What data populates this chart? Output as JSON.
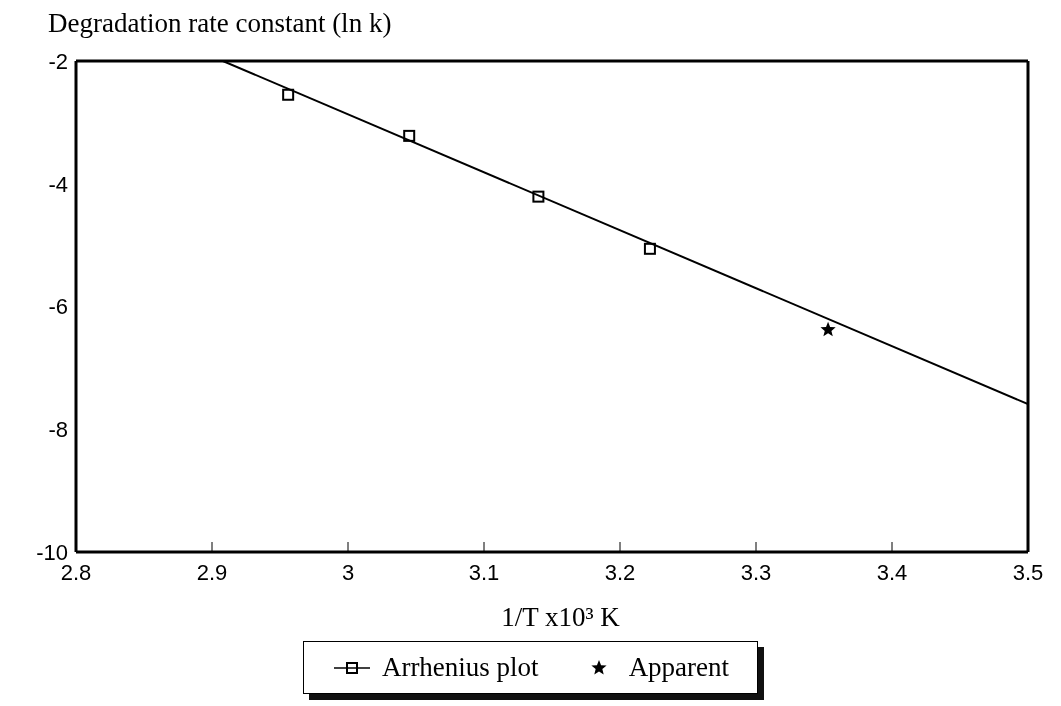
{
  "chart_data": {
    "type": "scatter",
    "ylabel": "Degradation rate constant (ln k)",
    "xlabel": "1/T  x10³ K",
    "xlim": [
      2.8,
      3.5
    ],
    "xticks": [
      2.8,
      2.9,
      3,
      3.1,
      3.2,
      3.3,
      3.4,
      3.5
    ],
    "ylim": [
      -10,
      -2
    ],
    "yticks": [
      -10,
      -8,
      -6,
      -4,
      -2
    ],
    "grid": false,
    "legend": "bottom",
    "series": [
      {
        "name": "Arrhenius plot",
        "marker": "square",
        "color": "#000000",
        "x": [
          2.956,
          3.045,
          3.14,
          3.222
        ],
        "values": [
          -2.55,
          -3.22,
          -4.21,
          -5.06
        ]
      },
      {
        "name": "Apparent",
        "marker": "star",
        "color": "#000000",
        "x": [
          3.353
        ],
        "values": [
          -6.38
        ]
      },
      {
        "type": "line",
        "marker": "none",
        "color": "#000000",
        "x": [
          2.908,
          3.5
        ],
        "values": [
          -2,
          -7.59
        ]
      }
    ]
  }
}
